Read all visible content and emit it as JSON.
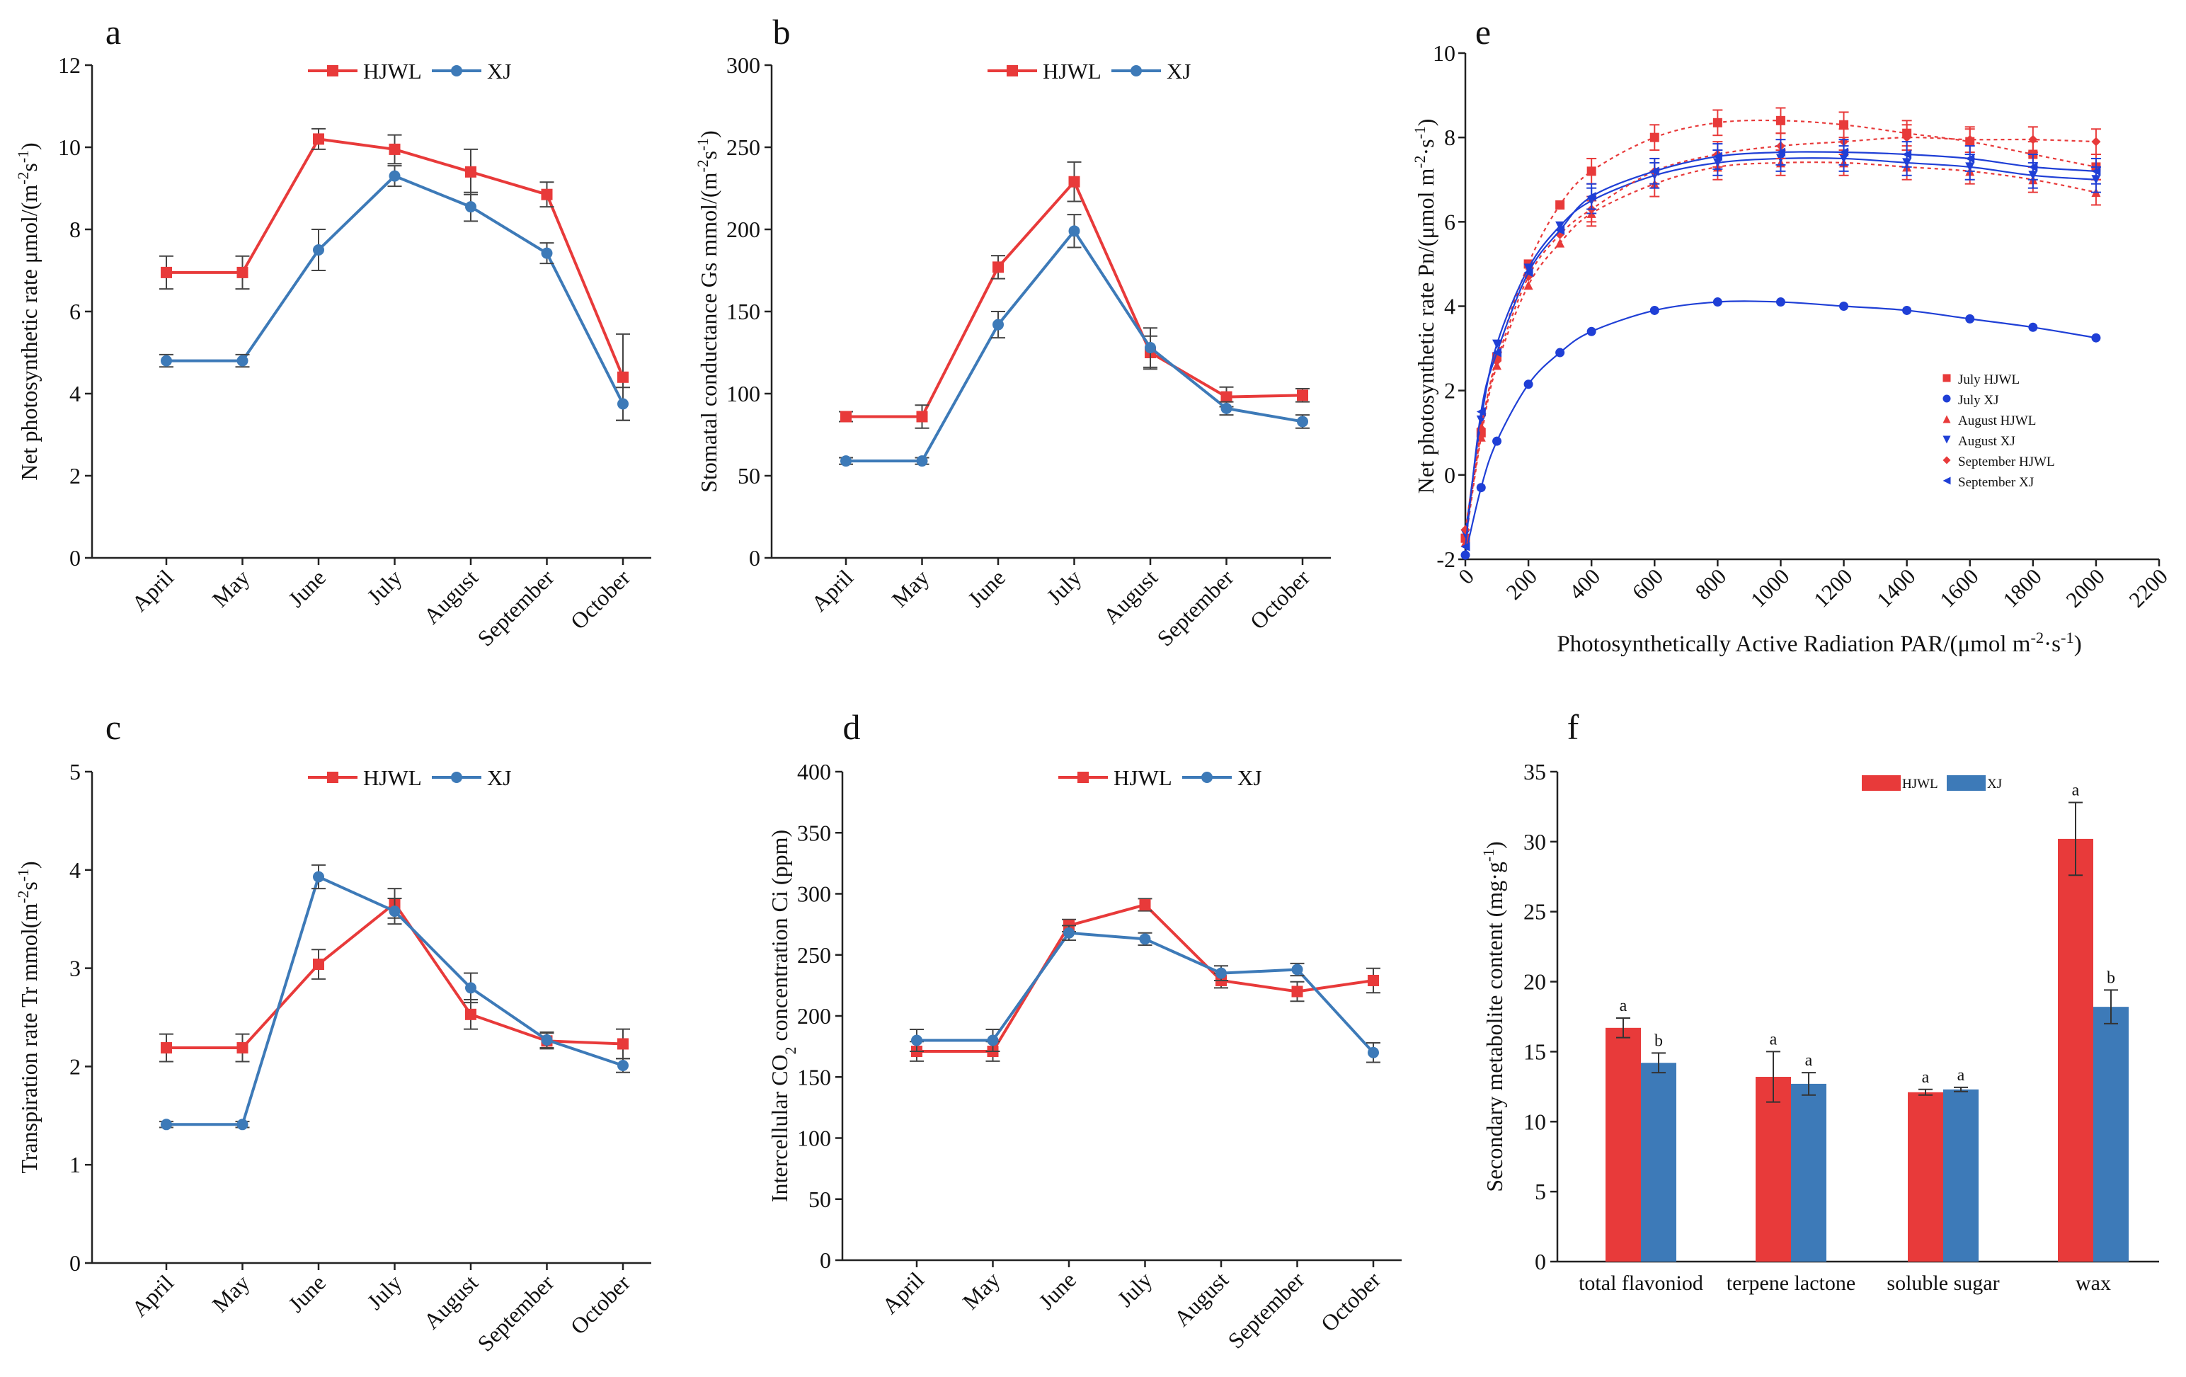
{
  "colors": {
    "hjwl": "#e83a3a",
    "xj": "#3d7ab8",
    "axis": "#222222",
    "fit_red": "#e83a3a",
    "fit_blue": "#1f3fd6"
  },
  "chart_data": [
    {
      "panel": "a",
      "type": "line",
      "title": "",
      "categories": [
        "April",
        "May",
        "June",
        "July",
        "August",
        "September",
        "October"
      ],
      "ylabel_main": "Net photosynthetic rate μmol/(m",
      "ylabel_sup1": "-2",
      "ylabel_mid": "s",
      "ylabel_sup2": "-1",
      "ylabel_end": ")",
      "ylim": [
        0,
        12
      ],
      "yticks": [
        0,
        2,
        4,
        6,
        8,
        10,
        12
      ],
      "legend": [
        "HJWL",
        "XJ"
      ],
      "series": [
        {
          "name": "HJWL",
          "values": [
            6.95,
            6.95,
            10.2,
            9.95,
            9.4,
            8.85,
            4.4
          ],
          "err": [
            0.4,
            0.4,
            0.25,
            0.35,
            0.55,
            0.3,
            1.05
          ]
        },
        {
          "name": "XJ",
          "values": [
            4.8,
            4.8,
            7.5,
            9.3,
            8.55,
            7.42,
            3.75
          ],
          "err": [
            0.15,
            0.15,
            0.5,
            0.25,
            0.35,
            0.25,
            0.4
          ]
        }
      ]
    },
    {
      "panel": "b",
      "type": "line",
      "categories": [
        "April",
        "May",
        "June",
        "July",
        "August",
        "September",
        "October"
      ],
      "ylabel_main": "Stomatal conductance Gs mmol/(m",
      "ylabel_sup1": "-2",
      "ylabel_mid": "s",
      "ylabel_sup2": "-1",
      "ylabel_end": ")",
      "ylim": [
        0,
        300
      ],
      "yticks": [
        0,
        50,
        100,
        150,
        200,
        250,
        300
      ],
      "legend": [
        "HJWL",
        "XJ"
      ],
      "series": [
        {
          "name": "HJWL",
          "values": [
            86,
            86,
            177,
            229,
            125,
            98,
            99
          ],
          "err": [
            3,
            7,
            7,
            12,
            10,
            6,
            4
          ]
        },
        {
          "name": "XJ",
          "values": [
            59,
            59,
            142,
            199,
            128,
            91,
            83
          ],
          "err": [
            2,
            2,
            8,
            10,
            12,
            4,
            4
          ]
        }
      ]
    },
    {
      "panel": "c",
      "type": "line",
      "categories": [
        "April",
        "May",
        "June",
        "July",
        "August",
        "September",
        "October"
      ],
      "ylabel_main": "Transpiration rate Tr mmol(m",
      "ylabel_sup1": "-2",
      "ylabel_mid": "s",
      "ylabel_sup2": "-1",
      "ylabel_end": ")",
      "ylim": [
        0,
        5
      ],
      "yticks": [
        0,
        1,
        2,
        3,
        4,
        5
      ],
      "legend": [
        "HJWL",
        "XJ"
      ],
      "series": [
        {
          "name": "HJWL",
          "values": [
            2.19,
            2.19,
            3.04,
            3.66,
            2.53,
            2.26,
            2.23
          ],
          "err": [
            0.14,
            0.14,
            0.15,
            0.15,
            0.15,
            0.08,
            0.15
          ]
        },
        {
          "name": "XJ",
          "values": [
            1.41,
            1.41,
            3.93,
            3.58,
            2.8,
            2.27,
            2.01
          ],
          "err": [
            0.03,
            0.03,
            0.12,
            0.13,
            0.15,
            0.08,
            0.07
          ]
        }
      ]
    },
    {
      "panel": "d",
      "type": "line",
      "categories": [
        "April",
        "May",
        "June",
        "July",
        "August",
        "September",
        "October"
      ],
      "ylabel_pre": "Intercellular CO",
      "ylabel_sub": "2",
      "ylabel_post": " concentration Ci (ppm)",
      "ylim": [
        0,
        400
      ],
      "yticks": [
        0,
        50,
        100,
        150,
        200,
        250,
        300,
        350,
        400
      ],
      "legend": [
        "HJWL",
        "XJ"
      ],
      "series": [
        {
          "name": "HJWL",
          "values": [
            171,
            171,
            274,
            291,
            229,
            220,
            229
          ],
          "err": [
            8,
            8,
            5,
            5,
            6,
            8,
            10
          ]
        },
        {
          "name": "XJ",
          "values": [
            180,
            180,
            268,
            263,
            235,
            238,
            170
          ],
          "err": [
            9,
            9,
            6,
            5,
            6,
            5,
            8
          ]
        }
      ]
    },
    {
      "panel": "e",
      "type": "scatter",
      "xlabel_main": "Photosynthetically Active Radiation PAR/(μmol m",
      "xlabel_sup1": "-2",
      "xlabel_mid": "·s",
      "xlabel_sup2": "-1",
      "xlabel_end": ")",
      "ylabel_main": "Net photosynthetic rate Pn/(μmol m",
      "ylabel_sup1": "-2",
      "ylabel_mid": "·s",
      "ylabel_sup2": "-1",
      "ylabel_end": ")",
      "xlim": [
        0,
        2200
      ],
      "ylim": [
        -2,
        10
      ],
      "xticks": [
        0,
        200,
        400,
        600,
        800,
        1000,
        1200,
        1400,
        1600,
        1800,
        2000,
        2200
      ],
      "yticks": [
        -2,
        0,
        2,
        4,
        6,
        8,
        10
      ],
      "x": [
        0,
        50,
        100,
        200,
        300,
        400,
        600,
        800,
        1000,
        1200,
        1400,
        1600,
        1800,
        2000
      ],
      "series": [
        {
          "name": "July HJWL",
          "marker": "square",
          "color": "red",
          "values": [
            -1.5,
            1.0,
            2.8,
            5.0,
            6.4,
            7.2,
            8.0,
            8.35,
            8.4,
            8.3,
            8.1,
            7.9,
            7.6,
            7.3
          ]
        },
        {
          "name": "July XJ",
          "marker": "circle",
          "color": "blue",
          "values": [
            -1.9,
            -0.3,
            0.8,
            2.15,
            2.9,
            3.4,
            3.9,
            4.1,
            4.1,
            4.0,
            3.9,
            3.7,
            3.5,
            3.25
          ]
        },
        {
          "name": "August HJWL",
          "marker": "triangle-up",
          "color": "red",
          "values": [
            -1.6,
            0.9,
            2.6,
            4.5,
            5.5,
            6.2,
            6.9,
            7.3,
            7.4,
            7.4,
            7.3,
            7.2,
            7.0,
            6.7
          ]
        },
        {
          "name": "August XJ",
          "marker": "triangle-down",
          "color": "blue",
          "values": [
            -1.4,
            1.3,
            3.1,
            4.9,
            5.9,
            6.5,
            7.1,
            7.4,
            7.5,
            7.5,
            7.4,
            7.3,
            7.1,
            7.0
          ]
        },
        {
          "name": "September HJWL",
          "marker": "diamond",
          "color": "red",
          "values": [
            -1.3,
            1.1,
            2.7,
            4.7,
            5.7,
            6.3,
            7.2,
            7.6,
            7.8,
            7.9,
            8.0,
            7.95,
            7.95,
            7.9
          ]
        },
        {
          "name": "September XJ",
          "marker": "triangle-left",
          "color": "blue",
          "values": [
            -1.7,
            1.5,
            2.9,
            4.8,
            5.8,
            6.6,
            7.2,
            7.55,
            7.65,
            7.65,
            7.6,
            7.5,
            7.3,
            7.2
          ]
        }
      ]
    },
    {
      "panel": "f",
      "type": "bar",
      "categories": [
        "total flavoniod",
        "terpene lactone",
        "soluble sugar",
        "wax"
      ],
      "ylabel": "Secondary metabolite content (mg·g",
      "ylabel_sup": "-1",
      "ylabel_end": ")",
      "ylim": [
        0,
        35
      ],
      "yticks": [
        0,
        5,
        10,
        15,
        20,
        25,
        30,
        35
      ],
      "legend": [
        "HJWL",
        "XJ"
      ],
      "series": [
        {
          "name": "HJWL",
          "values": [
            16.7,
            13.2,
            12.1,
            30.2
          ],
          "err": [
            0.7,
            1.8,
            0.2,
            2.6
          ],
          "letters": [
            "a",
            "a",
            "a",
            "a"
          ]
        },
        {
          "name": "XJ",
          "values": [
            14.2,
            12.7,
            12.3,
            18.2
          ],
          "err": [
            0.7,
            0.8,
            0.15,
            1.2
          ],
          "letters": [
            "b",
            "a",
            "a",
            "b"
          ]
        }
      ]
    }
  ]
}
